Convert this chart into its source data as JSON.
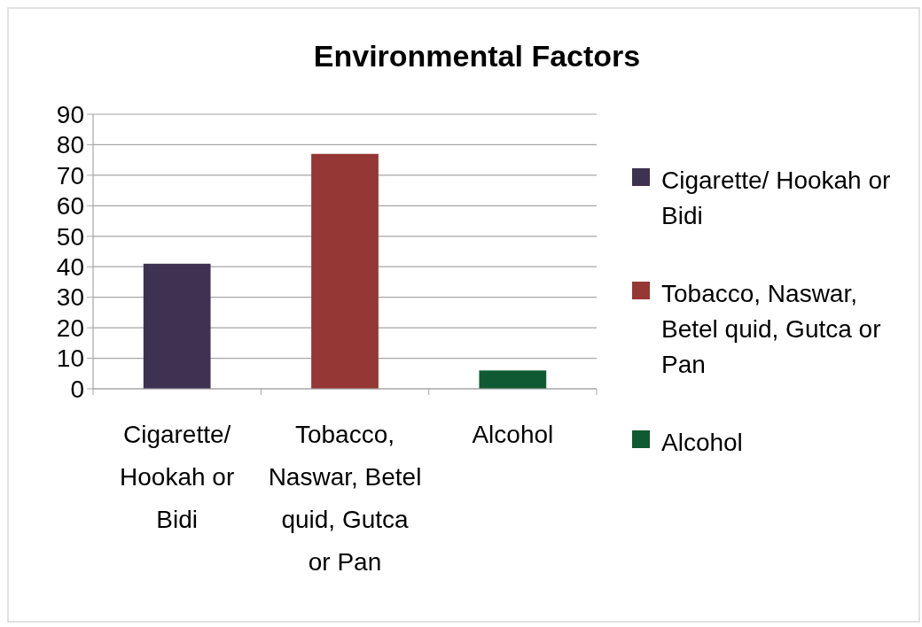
{
  "chart_data": {
    "type": "bar",
    "title": "Environmental Factors",
    "stacked": true,
    "categories": [
      "Cigarette/ Hookah or Bidi",
      "Tobacco, Naswar, Betel quid, Gutca or Pan",
      "Alcohol"
    ],
    "series": [
      {
        "name": "Cigarette/ Hookah or Bidi",
        "color": "#3f3151",
        "values": [
          41,
          null,
          null
        ]
      },
      {
        "name": "Tobacco, Naswar, Betel quid, Gutca or Pan",
        "color": "#953735",
        "values": [
          null,
          77,
          null
        ]
      },
      {
        "name": "Alcohol",
        "color": "#0f5a32",
        "values": [
          null,
          null,
          6
        ]
      }
    ],
    "ylim": [
      0,
      90
    ],
    "yticks": [
      0,
      10,
      20,
      30,
      40,
      50,
      60,
      70,
      80,
      90
    ],
    "grid": "y",
    "legend": "right"
  }
}
